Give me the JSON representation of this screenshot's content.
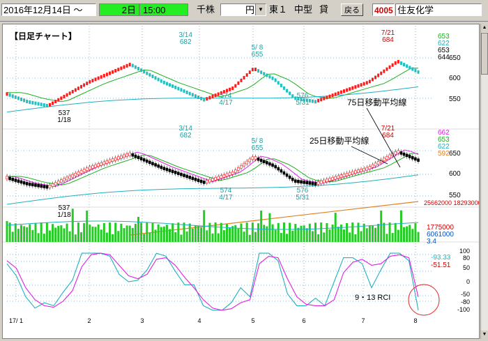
{
  "toolbar": {
    "date": "2016年12月14日 ～",
    "period": "2日",
    "time": "15:00",
    "unit": "千株",
    "currency": "円",
    "market": "東１",
    "size": "中型",
    "loan": "貸",
    "back_label": "戻る",
    "code": "4005",
    "company": "住友化学"
  },
  "chart_title": "【日足チャート】",
  "colors": {
    "up": "#ff1a1a",
    "down": "#20c0c0",
    "ma25": "#20b020",
    "ma75": "#20b0c0",
    "ma_orange": "#e08020",
    "rci9": "#20b0c0",
    "rci13": "#e020e0",
    "volume": "#22cc22",
    "price_magenta": "#e020e0"
  },
  "annotations": {
    "ma75_label": "75日移動平均線",
    "ma25_label": "25日移動平均線",
    "rci_label": "9・13 RCI"
  },
  "chart_data": [
    {
      "type": "candlestick",
      "panel": "heikin-ashi",
      "ylim": [
        500,
        700
      ],
      "yticks": [
        "650",
        "600",
        "550"
      ],
      "legend_values": [
        "653",
        "622",
        "653",
        "644"
      ],
      "points": [
        {
          "date": "3/14",
          "value": "682"
        },
        {
          "date": "5/ 8",
          "value": "655"
        },
        {
          "date": "7/21",
          "value": "684"
        },
        {
          "date": "1/18",
          "value": "537"
        },
        {
          "date": "4/17",
          "value": "574"
        },
        {
          "date": "5/31",
          "value": "576"
        }
      ]
    },
    {
      "type": "candlestick",
      "panel": "daily",
      "ylim": [
        520,
        720
      ],
      "yticks": [
        "650",
        "600",
        "550"
      ],
      "legend_values": [
        "662",
        "653",
        "622",
        "592"
      ],
      "points": [
        {
          "date": "3/14",
          "value": "682"
        },
        {
          "date": "5/ 8",
          "value": "655"
        },
        {
          "date": "7/21",
          "value": "684"
        },
        {
          "date": "1/18",
          "value": "537"
        },
        {
          "date": "4/17",
          "value": "574"
        },
        {
          "date": "5/31",
          "value": "576"
        }
      ]
    },
    {
      "type": "bar",
      "panel": "volume",
      "header": "25662000 18293000",
      "legend_values": [
        "1775000",
        "6061000",
        "3.4"
      ]
    },
    {
      "type": "line",
      "panel": "rci",
      "yticks": [
        "100",
        "80",
        "50",
        "0",
        "-50",
        "-80",
        "-100"
      ],
      "legend_values": [
        "-93.33",
        "-51.51"
      ],
      "x_labels": [
        "17/ 1",
        "2",
        "3",
        "4",
        "5",
        "6",
        "7",
        "8"
      ],
      "series": [
        {
          "key": "rci9",
          "values": [
            60,
            20,
            -50,
            -88,
            -70,
            -80,
            -35,
            5,
            95,
            95,
            95,
            85,
            25,
            0,
            5,
            40,
            95,
            85,
            35,
            -10,
            -10,
            -80,
            -95,
            -95,
            -70,
            -20,
            -50,
            95,
            95,
            70,
            -40,
            -80,
            -80,
            -55,
            -80,
            0,
            80,
            80,
            60,
            -20,
            40,
            95,
            95,
            70,
            -95
          ]
        },
        {
          "key": "rci13",
          "values": [
            70,
            45,
            -20,
            -60,
            -80,
            -85,
            -65,
            -30,
            50,
            90,
            95,
            90,
            55,
            20,
            10,
            25,
            75,
            80,
            55,
            15,
            -20,
            -60,
            -88,
            -95,
            -90,
            -70,
            -60,
            60,
            85,
            80,
            10,
            -50,
            -75,
            -80,
            -80,
            -60,
            30,
            65,
            75,
            55,
            60,
            85,
            90,
            80,
            -51
          ]
        }
      ]
    }
  ]
}
